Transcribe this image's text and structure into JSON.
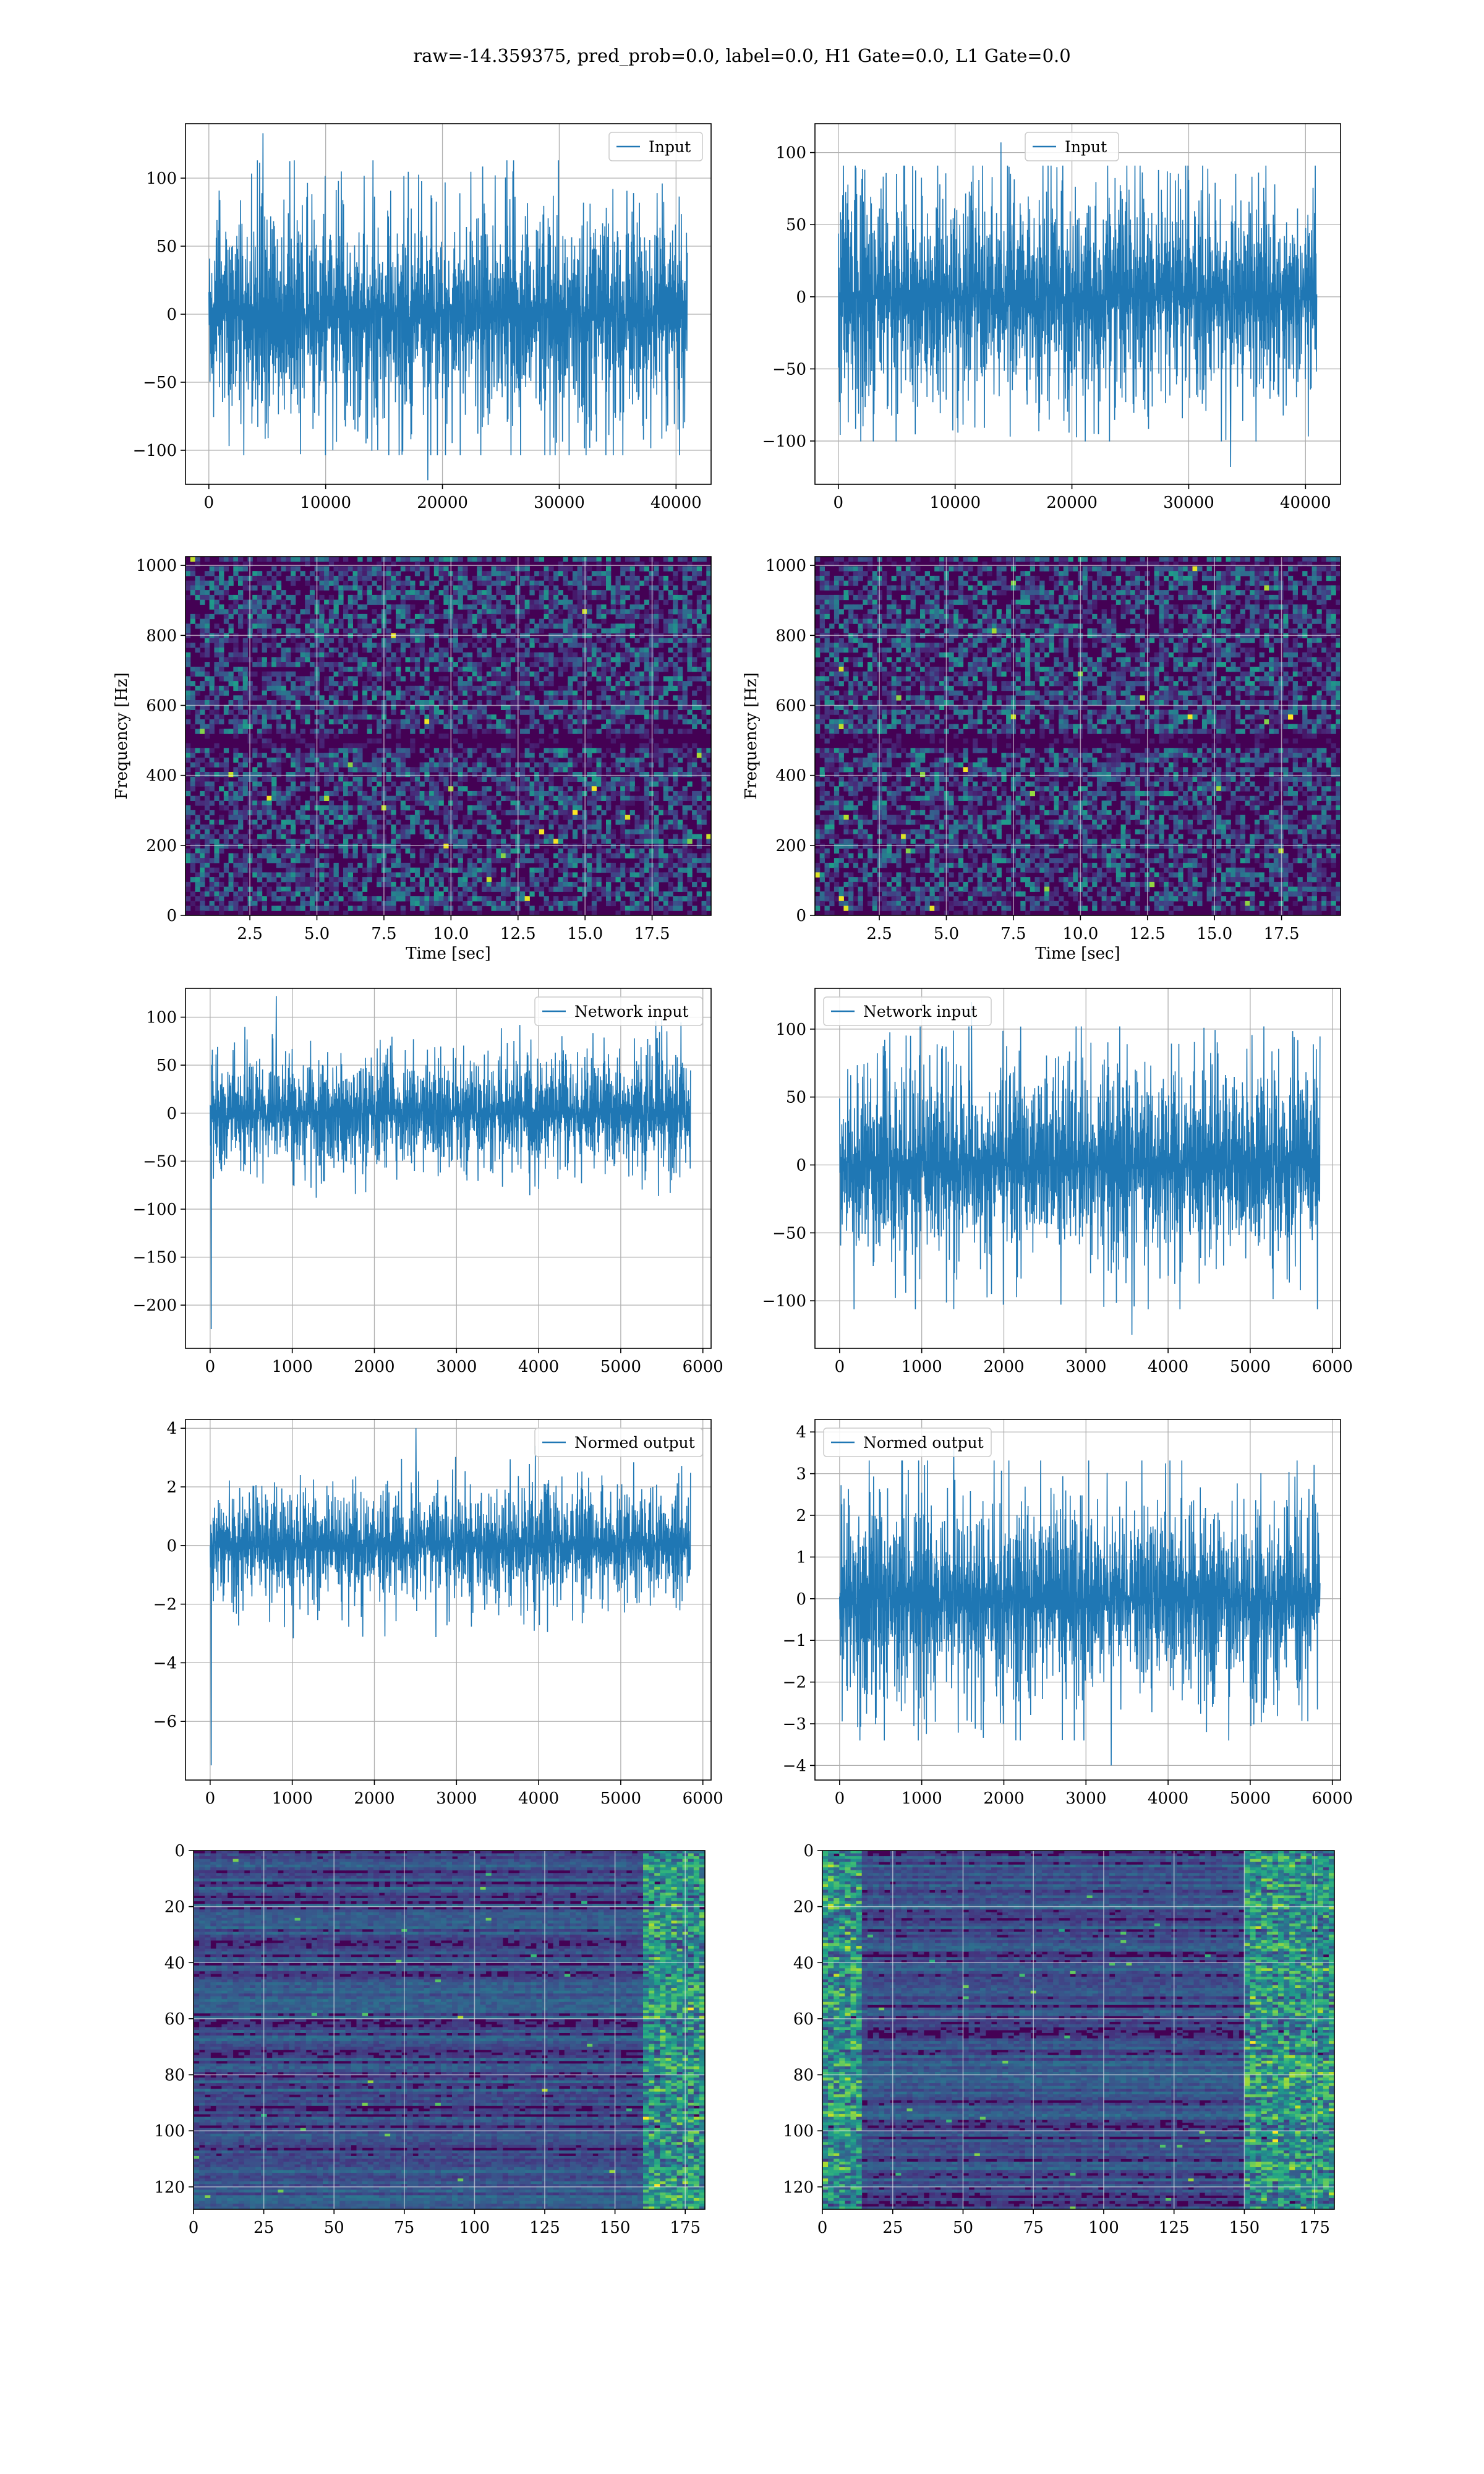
{
  "title": "raw=-14.359375, pred_prob=0.0, label=0.0, H1 Gate=0.0, L1 Gate=0.0",
  "colors": {
    "line": "#1f77b4",
    "grid": "#b0b0b0",
    "spec_bg": "#440154"
  },
  "chart_data": [
    {
      "type": "line",
      "row": 0,
      "col": 0,
      "series": [
        {
          "name": "Input",
          "x_range": [
            0,
            40960
          ],
          "y_min": -122,
          "y_max": 133,
          "envelope": [
            -75,
            75
          ]
        }
      ],
      "xlim": [
        -2000,
        43000
      ],
      "ylim": [
        -125,
        140
      ],
      "legend": "top-right",
      "grid": true,
      "xticks": [
        0,
        10000,
        20000,
        30000,
        40000
      ],
      "yticks": [
        -100,
        -50,
        0,
        50,
        100
      ],
      "xticklabels": [
        "0",
        "10000",
        "20000",
        "30000",
        "40000"
      ],
      "yticklabels": [
        "−100",
        "−50",
        "0",
        "50",
        "100"
      ],
      "xlabel": "",
      "ylabel": ""
    },
    {
      "type": "line",
      "row": 0,
      "col": 1,
      "series": [
        {
          "name": "Input",
          "x_range": [
            0,
            40960
          ],
          "y_min": -118,
          "y_max": 107,
          "envelope": [
            -70,
            70
          ]
        }
      ],
      "xlim": [
        -2000,
        43000
      ],
      "ylim": [
        -130,
        120
      ],
      "legend": "top-center",
      "grid": true,
      "xticks": [
        0,
        10000,
        20000,
        30000,
        40000
      ],
      "yticks": [
        -100,
        -50,
        0,
        50,
        100
      ],
      "xticklabels": [
        "0",
        "10000",
        "20000",
        "30000",
        "40000"
      ],
      "yticklabels": [
        "−100",
        "−50",
        "0",
        "50",
        "100"
      ],
      "xlabel": "",
      "ylabel": ""
    },
    {
      "type": "heatmap",
      "row": 1,
      "col": 0,
      "kind": "spectrogram",
      "xlim": [
        0.1,
        19.7
      ],
      "ylim": [
        0,
        1025
      ],
      "grid": true,
      "xticks": [
        2.5,
        5.0,
        7.5,
        10.0,
        12.5,
        15.0,
        17.5
      ],
      "yticks": [
        0,
        200,
        400,
        600,
        800,
        1000
      ],
      "xticklabels": [
        "2.5",
        "5.0",
        "7.5",
        "10.0",
        "12.5",
        "15.0",
        "17.5"
      ],
      "yticklabels": [
        "0",
        "200",
        "400",
        "600",
        "800",
        "1000"
      ],
      "xlabel": "Time [sec]",
      "ylabel": "Frequency [Hz]"
    },
    {
      "type": "heatmap",
      "row": 1,
      "col": 1,
      "kind": "spectrogram",
      "xlim": [
        0.1,
        19.7
      ],
      "ylim": [
        0,
        1025
      ],
      "grid": true,
      "xticks": [
        2.5,
        5.0,
        7.5,
        10.0,
        12.5,
        15.0,
        17.5
      ],
      "yticks": [
        0,
        200,
        400,
        600,
        800,
        1000
      ],
      "xticklabels": [
        "2.5",
        "5.0",
        "7.5",
        "10.0",
        "12.5",
        "15.0",
        "17.5"
      ],
      "yticklabels": [
        "0",
        "200",
        "400",
        "600",
        "800",
        "1000"
      ],
      "xlabel": "Time [sec]",
      "ylabel": "Frequency [Hz]"
    },
    {
      "type": "line",
      "row": 2,
      "col": 0,
      "series": [
        {
          "name": "Network input",
          "x_range": [
            0,
            5850
          ],
          "y_min": -225,
          "y_max": 122,
          "envelope": [
            -55,
            55
          ]
        }
      ],
      "xlim": [
        -300,
        6100
      ],
      "ylim": [
        -245,
        130
      ],
      "legend": "top-right",
      "grid": true,
      "xticks": [
        0,
        1000,
        2000,
        3000,
        4000,
        5000,
        6000
      ],
      "yticks": [
        -200,
        -150,
        -100,
        -50,
        0,
        50,
        100
      ],
      "xticklabels": [
        "0",
        "1000",
        "2000",
        "3000",
        "4000",
        "5000",
        "6000"
      ],
      "yticklabels": [
        "−200",
        "−150",
        "−100",
        "−50",
        "0",
        "50",
        "100"
      ],
      "xlabel": "",
      "ylabel": ""
    },
    {
      "type": "line",
      "row": 2,
      "col": 1,
      "series": [
        {
          "name": "Network input",
          "x_range": [
            0,
            5850
          ],
          "y_min": -125,
          "y_max": 120,
          "envelope": [
            -65,
            65
          ]
        }
      ],
      "xlim": [
        -300,
        6100
      ],
      "ylim": [
        -135,
        130
      ],
      "legend": "top-left",
      "grid": true,
      "xticks": [
        0,
        1000,
        2000,
        3000,
        4000,
        5000,
        6000
      ],
      "yticks": [
        -100,
        -50,
        0,
        50,
        100
      ],
      "xticklabels": [
        "0",
        "1000",
        "2000",
        "3000",
        "4000",
        "5000",
        "6000"
      ],
      "yticklabels": [
        "−100",
        "−50",
        "0",
        "50",
        "100"
      ],
      "xlabel": "",
      "ylabel": ""
    },
    {
      "type": "line",
      "row": 3,
      "col": 0,
      "series": [
        {
          "name": "Normed output",
          "x_range": [
            0,
            5850
          ],
          "y_min": -7.5,
          "y_max": 4.0,
          "envelope": [
            -1.8,
            1.8
          ]
        }
      ],
      "xlim": [
        -300,
        6100
      ],
      "ylim": [
        -8,
        4.3
      ],
      "legend": "top-right",
      "grid": true,
      "xticks": [
        0,
        1000,
        2000,
        3000,
        4000,
        5000,
        6000
      ],
      "yticks": [
        -6,
        -4,
        -2,
        0,
        2,
        4
      ],
      "xticklabels": [
        "0",
        "1000",
        "2000",
        "3000",
        "4000",
        "5000",
        "6000"
      ],
      "yticklabels": [
        "−6",
        "−4",
        "−2",
        "0",
        "2",
        "4"
      ],
      "xlabel": "",
      "ylabel": ""
    },
    {
      "type": "line",
      "row": 3,
      "col": 1,
      "series": [
        {
          "name": "Normed output",
          "x_range": [
            0,
            5850
          ],
          "y_min": -4.0,
          "y_max": 3.9,
          "envelope": [
            -2.2,
            2.2
          ]
        }
      ],
      "xlim": [
        -300,
        6100
      ],
      "ylim": [
        -4.35,
        4.3
      ],
      "legend": "top-left",
      "grid": true,
      "xticks": [
        0,
        1000,
        2000,
        3000,
        4000,
        5000,
        6000
      ],
      "yticks": [
        -4,
        -3,
        -2,
        -1,
        0,
        1,
        2,
        3,
        4
      ],
      "xticklabels": [
        "0",
        "1000",
        "2000",
        "3000",
        "4000",
        "5000",
        "6000"
      ],
      "yticklabels": [
        "−4",
        "−3",
        "−2",
        "−1",
        "0",
        "1",
        "2",
        "3",
        "4"
      ],
      "xlabel": "",
      "ylabel": ""
    },
    {
      "type": "heatmap",
      "row": 4,
      "col": 0,
      "kind": "feature-map",
      "xlim": [
        0,
        182
      ],
      "ylim": [
        128,
        0
      ],
      "grid": true,
      "hot_columns": [
        160,
        180
      ],
      "xticks": [
        0,
        25,
        50,
        75,
        100,
        125,
        150,
        175
      ],
      "yticks": [
        0,
        20,
        40,
        60,
        80,
        100,
        120
      ],
      "xticklabels": [
        "0",
        "25",
        "50",
        "75",
        "100",
        "125",
        "150",
        "175"
      ],
      "yticklabels": [
        "0",
        "20",
        "40",
        "60",
        "80",
        "100",
        "120"
      ],
      "xlabel": "",
      "ylabel": ""
    },
    {
      "type": "heatmap",
      "row": 4,
      "col": 1,
      "kind": "feature-map",
      "xlim": [
        0,
        182
      ],
      "ylim": [
        128,
        0
      ],
      "grid": true,
      "hot_columns": [
        0,
        12,
        150,
        182
      ],
      "xticks": [
        0,
        25,
        50,
        75,
        100,
        125,
        150,
        175
      ],
      "yticks": [
        0,
        20,
        40,
        60,
        80,
        100,
        120
      ],
      "xticklabels": [
        "0",
        "25",
        "50",
        "75",
        "100",
        "125",
        "150",
        "175"
      ],
      "yticklabels": [
        "0",
        "20",
        "40",
        "60",
        "80",
        "100",
        "120"
      ],
      "xlabel": "",
      "ylabel": ""
    }
  ]
}
